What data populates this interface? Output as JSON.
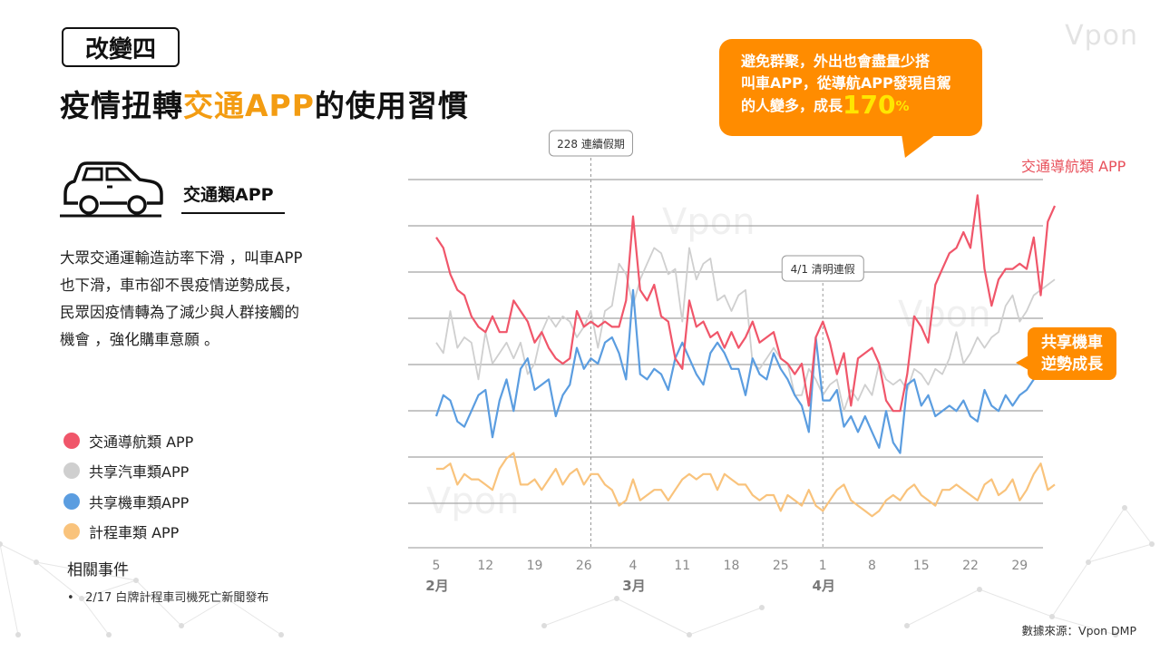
{
  "section_tag": "改變四",
  "title": {
    "prefix": "疫情扭轉",
    "highlight": "交通APP",
    "suffix": "的使用習慣"
  },
  "brand": "Vpon",
  "category": {
    "label": "交通類APP",
    "icon": "car-icon"
  },
  "description": "大眾交通運輸造訪率下滑 ，叫車APP也下滑，車市卻不畏疫情逆勢成長，民眾因疫情轉為了減少與人群接觸的機會 ，強化購車意願 。",
  "legend": [
    {
      "label": "交通導航類 APP",
      "color": "#f0566a"
    },
    {
      "label": "共享汽車類APP",
      "color": "#cfcfcf"
    },
    {
      "label": "共享機車類APP",
      "color": "#5b9de0"
    },
    {
      "label": "計程車類 APP",
      "color": "#f9c37c"
    }
  ],
  "events": {
    "title": "相關事件",
    "items": [
      "2/17 白牌計程車司機死亡新聞發布"
    ]
  },
  "source": "數據來源：Vpon DMP",
  "callout": {
    "line1": "避免群聚，外出也會盡量少搭",
    "line2": "叫車APP，從導航APP發現自駕",
    "line3": "的人變多，成長",
    "value": "170",
    "unit": "%"
  },
  "scooter_callout": {
    "line1": "共享機車",
    "line2": "逆勢成長"
  },
  "series_label_nav": "交通導航類 APP",
  "chart_data": {
    "type": "line",
    "x_ticks": [
      "5",
      "12",
      "19",
      "26",
      "4",
      "11",
      "18",
      "25",
      "1",
      "8",
      "15",
      "22",
      "29"
    ],
    "months": [
      "2月",
      "3月",
      "4月"
    ],
    "annotations": [
      {
        "label": "228 連續假期",
        "day_index": 22
      },
      {
        "label": "4/1 清明連假",
        "day_index": 55
      }
    ],
    "series": [
      {
        "name": "交通導航類 APP",
        "color": "#f0566a",
        "values": [
          74,
          72,
          67,
          64,
          63,
          59,
          57,
          56,
          59,
          56,
          56,
          62,
          60,
          58,
          54,
          56,
          53,
          51,
          50,
          51,
          60,
          57,
          58,
          57,
          58,
          57,
          57,
          62,
          78,
          64,
          62,
          65,
          59,
          58,
          51,
          49,
          62,
          57,
          58,
          55,
          56,
          53,
          56,
          53,
          55,
          58,
          54,
          55,
          56,
          51,
          50,
          48,
          50,
          42,
          55,
          58,
          54,
          48,
          52,
          42,
          51,
          52,
          53,
          50,
          43,
          41,
          41,
          48,
          59,
          57,
          54,
          65,
          68,
          71,
          72,
          75,
          72,
          82,
          68,
          61,
          66,
          68,
          68,
          69,
          68,
          74,
          63,
          77,
          80
        ]
      },
      {
        "name": "共享汽車類APP",
        "color": "#cfcfcf",
        "values": [
          54,
          52,
          60,
          53,
          55,
          54,
          47,
          56,
          50,
          52,
          54,
          51,
          54,
          48,
          50,
          56,
          59,
          57,
          59,
          58,
          55,
          57,
          60,
          53,
          60,
          61,
          69,
          67,
          61,
          66,
          69,
          72,
          71,
          67,
          68,
          58,
          72,
          66,
          69,
          70,
          62,
          63,
          60,
          63,
          64,
          50,
          49,
          51,
          53,
          51,
          50,
          44,
          44,
          49,
          47,
          44,
          46,
          47,
          41,
          45,
          43,
          46,
          44,
          50,
          47,
          46,
          47,
          45,
          49,
          48,
          46,
          49,
          48,
          51,
          56,
          50,
          52,
          55,
          53,
          55,
          56,
          61,
          63,
          58,
          60,
          63,
          64,
          65,
          66
        ]
      },
      {
        "name": "共享機車類APP",
        "color": "#5b9de0",
        "values": [
          40,
          44,
          43,
          39,
          38,
          41,
          44,
          45,
          36,
          43,
          47,
          41,
          49,
          51,
          45,
          46,
          47,
          40,
          44,
          46,
          53,
          49,
          51,
          50,
          54,
          55,
          52,
          47,
          64,
          48,
          47,
          49,
          48,
          45,
          51,
          54,
          51,
          48,
          46,
          52,
          54,
          52,
          49,
          49,
          44,
          51,
          48,
          47,
          52,
          49,
          47,
          44,
          42,
          37,
          55,
          43,
          43,
          45,
          38,
          40,
          37,
          40,
          37,
          34,
          41,
          35,
          33,
          46,
          47,
          42,
          44,
          40,
          41,
          42,
          41,
          43,
          40,
          39,
          45,
          42,
          41,
          44,
          42,
          44,
          45,
          47,
          49,
          52,
          56
        ]
      },
      {
        "name": "計程車類 APP",
        "color": "#f9c37c",
        "values": [
          30,
          30,
          31,
          27,
          29,
          28,
          28,
          27,
          26,
          30,
          32,
          33,
          27,
          27,
          28,
          26,
          28,
          30,
          27,
          29,
          30,
          27,
          29,
          29,
          27,
          26,
          23,
          24,
          28,
          24,
          25,
          26,
          26,
          24,
          26,
          28,
          29,
          28,
          29,
          29,
          26,
          29,
          28,
          27,
          27,
          25,
          24,
          25,
          25,
          22,
          25,
          24,
          23,
          26,
          23,
          22,
          24,
          26,
          27,
          24,
          23,
          22,
          21,
          22,
          24,
          25,
          24,
          26,
          27,
          25,
          24,
          23,
          26,
          26,
          27,
          26,
          25,
          24,
          27,
          28,
          25,
          26,
          28,
          24,
          26,
          29,
          31,
          26,
          27
        ]
      }
    ],
    "grid": true,
    "ylim": [
      15,
      85
    ]
  }
}
